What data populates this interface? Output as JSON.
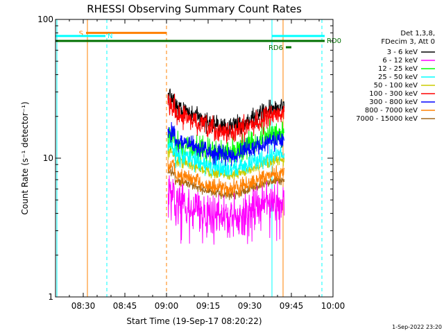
{
  "chart_data": {
    "type": "line",
    "title": "RHESSI Observing Summary Count Rates",
    "xlabel": "Start Time (19-Sep-17 08:20:22)",
    "ylabel": "Count Rate (s⁻¹ detector⁻¹)",
    "y_scale": "log",
    "ylim": [
      1,
      100
    ],
    "xlim": [
      "08:20",
      "10:00"
    ],
    "x_ticks": [
      "08:30",
      "08:45",
      "09:00",
      "09:15",
      "09:30",
      "09:45",
      "10:00"
    ],
    "y_ticks": [
      "1",
      "10",
      "100"
    ],
    "data_window": [
      "09:00:30",
      "09:42:30"
    ],
    "legend_header": [
      "Det 1,3,8,",
      "FDecim 3, Att 0"
    ],
    "series": [
      {
        "name": "3 - 6 keV",
        "color": "#000000",
        "level": 21,
        "noise": 0.1
      },
      {
        "name": "6 - 12 keV",
        "color": "#ff00ff",
        "level": 4.3,
        "noise": 0.22
      },
      {
        "name": "12 - 25 keV",
        "color": "#00ff00",
        "level": 11,
        "noise": 0.14
      },
      {
        "name": "25 - 50 keV",
        "color": "#00ffff",
        "level": 9.5,
        "noise": 0.1
      },
      {
        "name": "50 - 100 keV",
        "color": "#cccc00",
        "level": 8.6,
        "noise": 0.06
      },
      {
        "name": "100 - 300 keV",
        "color": "#ff0000",
        "level": 19,
        "noise": 0.12
      },
      {
        "name": "300 - 800 keV",
        "color": "#0000ff",
        "level": 12,
        "noise": 0.1
      },
      {
        "name": "800 - 7000 keV",
        "color": "#ff8000",
        "level": 6.8,
        "noise": 0.09
      },
      {
        "name": "7000 - 15000 keV",
        "color": "#a0661a",
        "level": 6.2,
        "noise": 0.05
      }
    ],
    "flag_lines": [
      {
        "label": "S",
        "color": "#ff8000",
        "y": 80,
        "x_start": "08:31",
        "x_end": "09:00",
        "label_at": "start"
      },
      {
        "label": "N",
        "color": "#00ffff",
        "y": 76,
        "x_start": "08:20",
        "x_end": "08:38",
        "label_at": "end"
      },
      {
        "label": "N",
        "color": "#00ffff",
        "y": 76,
        "x_start": "09:38",
        "x_end": "09:57",
        "label_at": "none"
      },
      {
        "label": "RD0",
        "color": "#007000",
        "y": 70,
        "x_start": "08:20",
        "x_end": "09:57",
        "label_at": "end"
      },
      {
        "label": "RD6",
        "color": "#007000",
        "y": 63,
        "x_start": "09:43",
        "x_end": "09:45",
        "label_at": "start"
      }
    ],
    "vertical_markers": [
      {
        "x": "08:20:30",
        "color": "#00ffff",
        "style": "solid"
      },
      {
        "x": "08:31:30",
        "color": "#ff8000",
        "style": "solid"
      },
      {
        "x": "08:38:30",
        "color": "#00ffff",
        "style": "dashed"
      },
      {
        "x": "09:00:00",
        "color": "#ff8000",
        "style": "dashed"
      },
      {
        "x": "09:38:00",
        "color": "#00ffff",
        "style": "solid"
      },
      {
        "x": "09:42:00",
        "color": "#ff8000",
        "style": "solid"
      },
      {
        "x": "09:56:00",
        "color": "#00ffff",
        "style": "dashed"
      }
    ],
    "footer": "1-Sep-2022 23:20"
  }
}
